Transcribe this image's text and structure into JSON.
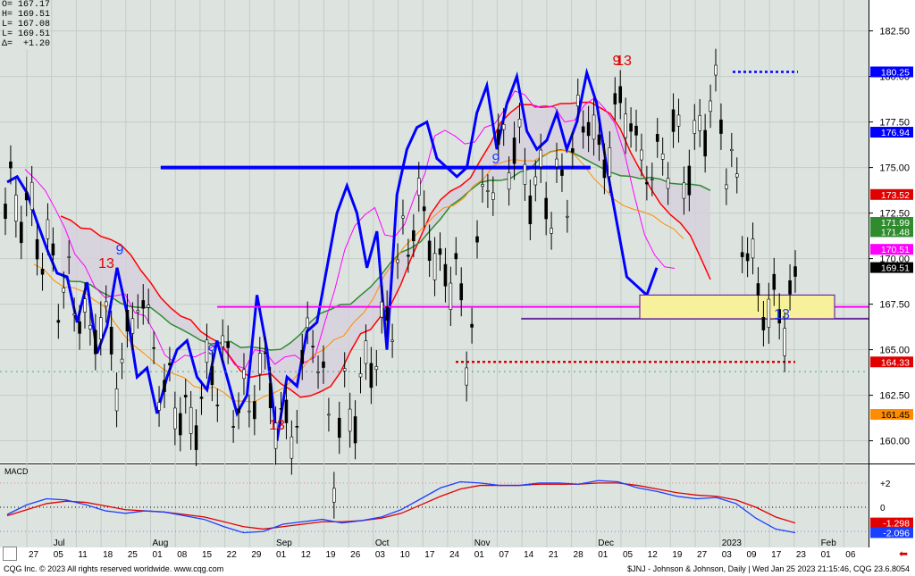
{
  "header": {
    "open_label": "O=",
    "open": "167.17",
    "high_label": "H=",
    "high": "169.51",
    "low_label": "L=",
    "low": "167.08",
    "last_label": "L=",
    "last": "169.51",
    "delta_label": "Δ=",
    "delta": "+1.20"
  },
  "footer": {
    "left": "CQG Inc. © 2023 All rights reserved worldwide. www.cqg.com",
    "right": "$JNJ - Johnson & Johnson, Daily | Wed Jan 25 2023 21:15:46, CQG 23.6.8054"
  },
  "macd_label": "MACD",
  "colors": {
    "background": "#dde4e0",
    "price_line": "#0000ff",
    "kijun": "#ff0000",
    "senkou_b": "#2e8b2e",
    "tenkan": "#ff00ff",
    "chikou_orange": "#ff8c00",
    "cloud": "#d6d0dc",
    "macd": "#1a3fff",
    "signal": "#e00000"
  },
  "chart_data": {
    "type": "candlestick",
    "title": "",
    "y_axis": {
      "ticks": [
        "182.50",
        "180.00",
        "177.50",
        "175.00",
        "172.50",
        "170.00",
        "167.50",
        "165.00",
        "162.50",
        "160.00"
      ],
      "range": [
        159.0,
        184.0
      ]
    },
    "x_axis": {
      "day_ticks": [
        "27",
        "05",
        "11",
        "18",
        "25",
        "01",
        "08",
        "15",
        "22",
        "29",
        "01",
        "12",
        "19",
        "26",
        "03",
        "10",
        "17",
        "24",
        "01",
        "07",
        "14",
        "21",
        "28",
        "01",
        "05",
        "12",
        "19",
        "27",
        "03",
        "09",
        "17",
        "23",
        "01",
        "06"
      ],
      "month_labels": [
        "Jul",
        "Aug",
        "Sep",
        "Oct",
        "Nov",
        "Dec",
        "2023",
        "Feb"
      ]
    },
    "price_labels": [
      {
        "value": "180.25",
        "color": "#0000ff",
        "text_color": "#ffffff"
      },
      {
        "value": "176.94",
        "color": "#0000ff",
        "text_color": "#ffffff"
      },
      {
        "value": "173.52",
        "color": "#e00000",
        "text_color": "#ffffff"
      },
      {
        "value": "171.99",
        "color": "#2e8b2e",
        "text_color": "#ffffff"
      },
      {
        "value": "171.48",
        "color": "#2e8b2e",
        "text_color": "#ffffff"
      },
      {
        "value": "170.51",
        "color": "#ff00ff",
        "text_color": "#ffffff"
      },
      {
        "value": "169.51",
        "color": "#000000",
        "text_color": "#ffffff"
      },
      {
        "value": "164.33",
        "color": "#e00000",
        "text_color": "#ffffff"
      },
      {
        "value": "161.45",
        "color": "#ff8c00",
        "text_color": "#000000"
      }
    ],
    "horizontal_lines": [
      {
        "name": "blue-resistance",
        "y": 175.0,
        "x_start_frac": 0.185,
        "x_end_frac": 0.68,
        "color": "#0000ff"
      },
      {
        "name": "magenta-support",
        "y": 167.35,
        "x_start_frac": 0.25,
        "x_end_frac": 1.0,
        "color": "#ff00ff"
      },
      {
        "name": "purple-support",
        "y": 166.7,
        "x_start_frac": 0.6,
        "x_end_frac": 1.0,
        "color": "#6a2ca0"
      }
    ],
    "annotations": [
      "13",
      "9",
      "13",
      "9",
      "13",
      "9",
      "13",
      "9"
    ],
    "macd": {
      "ticks": [
        "+2",
        "0",
        "-2"
      ],
      "range": [
        -2.8,
        2.8
      ],
      "macd_value": "-2.096",
      "signal_value": "-1.298",
      "macd": [
        -0.6,
        0.2,
        0.7,
        0.6,
        0.2,
        -0.3,
        -0.5,
        -0.3,
        -0.4,
        -0.7,
        -1.0,
        -1.6,
        -2.1,
        -2.0,
        -1.4,
        -1.2,
        -1.0,
        -1.3,
        -1.1,
        -0.8,
        -0.2,
        0.7,
        1.6,
        2.1,
        2.0,
        1.8,
        1.8,
        2.0,
        2.0,
        1.9,
        2.2,
        2.1,
        1.6,
        1.3,
        0.9,
        0.7,
        0.8,
        0.3,
        -0.9,
        -1.8,
        -2.1
      ],
      "signal": [
        -0.7,
        -0.2,
        0.3,
        0.5,
        0.4,
        0.1,
        -0.2,
        -0.3,
        -0.4,
        -0.6,
        -0.8,
        -1.2,
        -1.6,
        -1.8,
        -1.6,
        -1.4,
        -1.2,
        -1.2,
        -1.1,
        -0.9,
        -0.5,
        0.2,
        0.9,
        1.5,
        1.8,
        1.8,
        1.8,
        1.9,
        1.9,
        1.9,
        2.0,
        2.0,
        1.8,
        1.5,
        1.2,
        1.0,
        0.9,
        0.6,
        0.0,
        -0.8,
        -1.3
      ]
    },
    "blue_line": [
      174.2,
      174.5,
      173.6,
      172.0,
      170.5,
      169.2,
      169.0,
      166.5,
      168.7,
      164.8,
      166.3,
      169.5,
      167.0,
      163.5,
      164.0,
      161.5,
      163.5,
      165.0,
      165.5,
      163.5,
      162.8,
      165.5,
      163.5,
      161.5,
      162.5,
      168.0,
      165.0,
      160.0,
      163.5,
      163.0,
      166.0,
      166.5,
      169.5,
      172.5,
      174.0,
      172.5,
      169.5,
      171.5,
      165.0,
      173.5,
      176.0,
      177.2,
      177.5,
      175.5,
      175.0,
      174.5,
      175.0,
      178.0,
      179.5,
      176.0,
      178.5,
      180.0,
      177.0,
      176.0,
      176.5,
      178.0,
      176.0,
      177.5,
      180.2,
      178.5,
      175.0,
      172.0,
      169.0,
      168.5,
      168.0,
      169.5
    ]
  }
}
